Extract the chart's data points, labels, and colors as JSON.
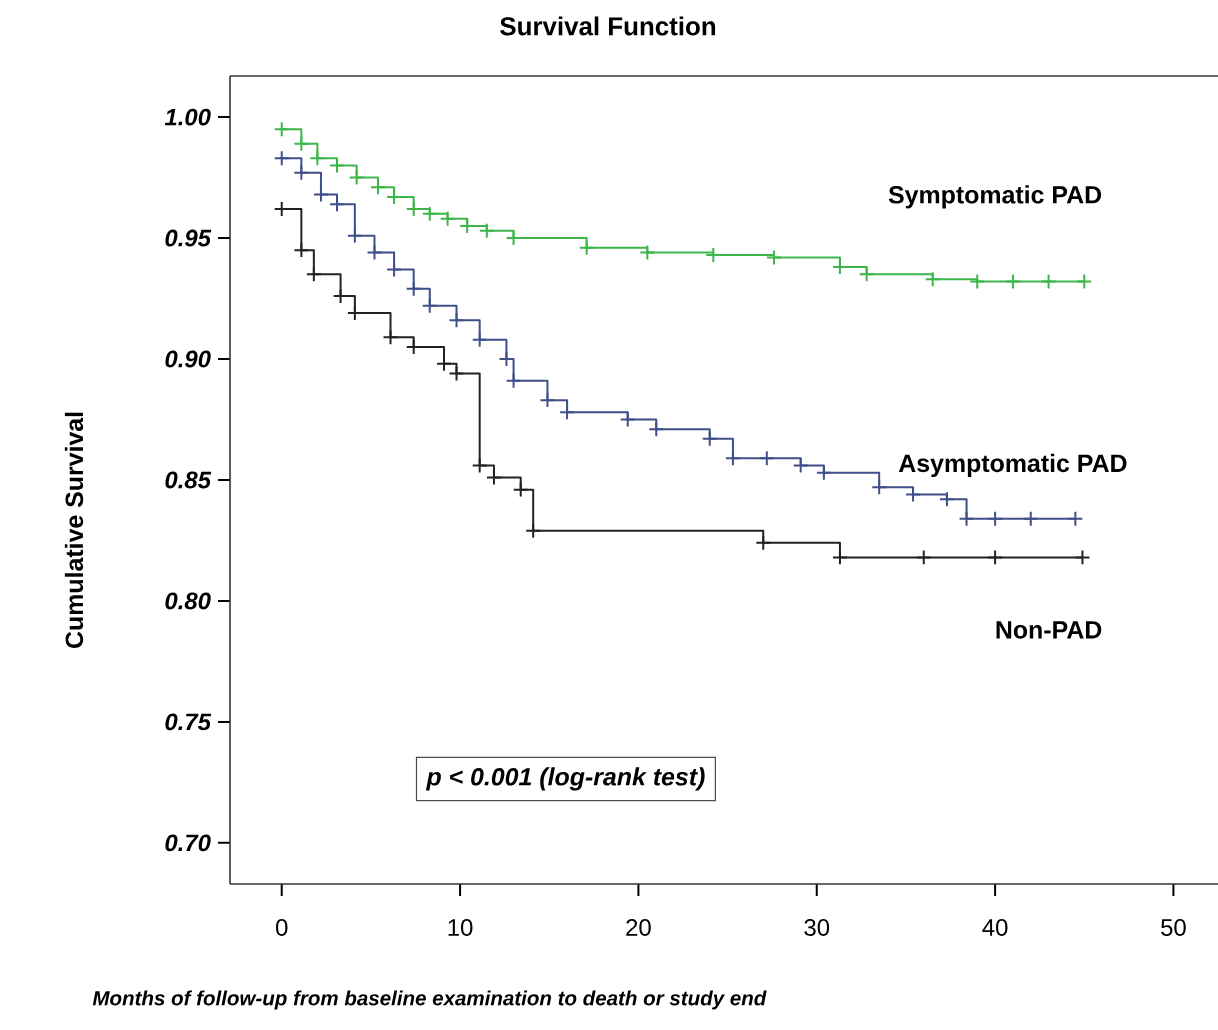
{
  "chart_data": {
    "type": "step",
    "title": "Survival Function",
    "xlabel": "Months of follow-up from baseline examination to death or study end",
    "ylabel": "Cumulative Survival",
    "xlim": [
      -2.9,
      52.5
    ],
    "ylim": [
      0.683,
      1.017
    ],
    "xticks": [
      0,
      10,
      20,
      30,
      40,
      50
    ],
    "yticks": [
      {
        "value": 0.7,
        "label": "0.70"
      },
      {
        "value": 0.75,
        "label": "0.75"
      },
      {
        "value": 0.8,
        "label": "0.80"
      },
      {
        "value": 0.85,
        "label": "0.85"
      },
      {
        "value": 0.9,
        "label": "0.90"
      },
      {
        "value": 0.95,
        "label": "0.95"
      },
      {
        "value": 1.0,
        "label": "1.00"
      }
    ],
    "grid": false,
    "legend": false,
    "marker": "cross",
    "line_style": "solid",
    "annotations": [
      "p < 0.001 (log-rank test)"
    ],
    "series": [
      {
        "name": "Symptomatic PAD",
        "color": "#3cb54a",
        "x": [
          0,
          1.1,
          2,
          3.1,
          4.2,
          5.4,
          6.3,
          7.4,
          8.3,
          9.3,
          10.4,
          11.5,
          13,
          17.1,
          20.5,
          24.2,
          27.6,
          31.3,
          32.8,
          36.5,
          39,
          41,
          43,
          45
        ],
        "values": [
          0.995,
          0.989,
          0.983,
          0.98,
          0.975,
          0.971,
          0.967,
          0.962,
          0.96,
          0.958,
          0.955,
          0.953,
          0.95,
          0.946,
          0.944,
          0.943,
          0.942,
          0.938,
          0.935,
          0.933,
          0.932,
          0.932,
          0.932,
          0.932
        ]
      },
      {
        "name": "Asymptomatic PAD",
        "color": "#3f4f8a",
        "x": [
          0,
          1.1,
          2.2,
          3.1,
          4.1,
          5.2,
          6.3,
          7.4,
          8.3,
          9.8,
          11.1,
          12.6,
          13,
          14.9,
          16,
          19.4,
          21,
          24,
          25.3,
          27.2,
          29.1,
          30.4,
          33.5,
          35.4,
          37.3,
          38.4,
          40,
          42,
          44.5
        ],
        "values": [
          0.983,
          0.977,
          0.968,
          0.964,
          0.951,
          0.944,
          0.937,
          0.929,
          0.922,
          0.916,
          0.908,
          0.9,
          0.891,
          0.883,
          0.878,
          0.875,
          0.871,
          0.867,
          0.859,
          0.859,
          0.856,
          0.853,
          0.847,
          0.844,
          0.842,
          0.834,
          0.834,
          0.834,
          0.834
        ]
      },
      {
        "name": "Non-PAD",
        "color": "#222222",
        "x": [
          0,
          1.1,
          1.8,
          3.3,
          4.1,
          6.1,
          7.4,
          9.1,
          9.8,
          11.1,
          11.9,
          13.4,
          14.1,
          27,
          31.3,
          36,
          40,
          44.9
        ],
        "values": [
          0.962,
          0.945,
          0.935,
          0.926,
          0.919,
          0.909,
          0.905,
          0.898,
          0.894,
          0.856,
          0.851,
          0.846,
          0.829,
          0.824,
          0.818,
          0.818,
          0.818,
          0.818
        ]
      }
    ]
  }
}
